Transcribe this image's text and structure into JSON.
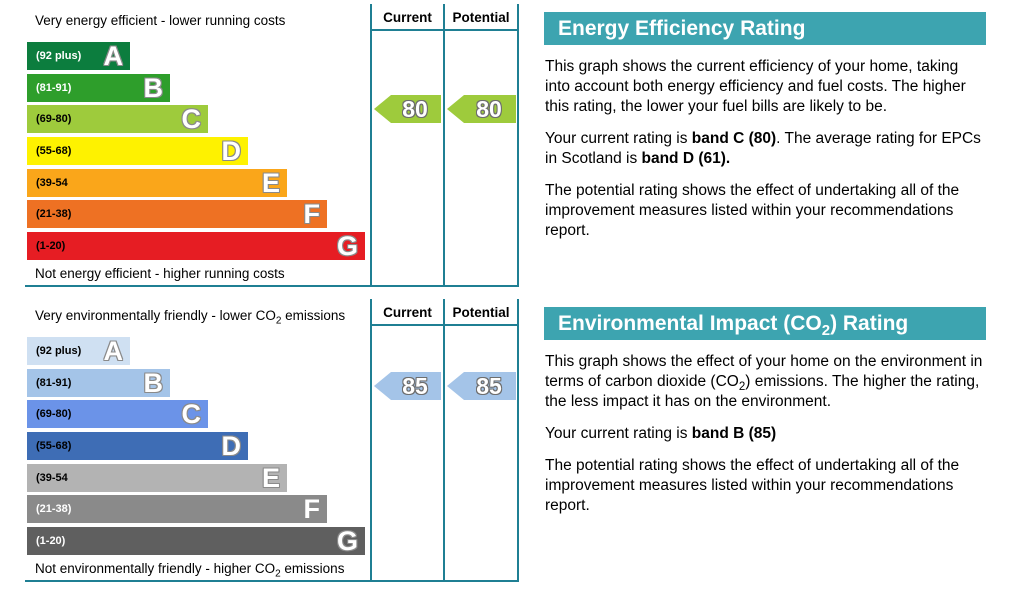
{
  "theme": {
    "header_bg": "#3da4b0",
    "line_color": "#1f7f93",
    "text_color": "#000000",
    "band_letter_color": "#ffffff"
  },
  "chart_data": [
    {
      "type": "bar",
      "variant": "epc-rating-scale",
      "title": "Energy Efficiency Rating",
      "top_caption": {
        "pre": "Very energy efficient - lower running costs"
      },
      "bottom_caption": {
        "pre": "Not energy efficient - higher running costs"
      },
      "column_headers": [
        "Current",
        "Potential"
      ],
      "bands": [
        {
          "letter": "A",
          "range": "(92 plus)",
          "color": "#0c7d3e",
          "label_color": "#ffffff"
        },
        {
          "letter": "B",
          "range": "(81-91)",
          "color": "#2e9e2b",
          "label_color": "#ffffff"
        },
        {
          "letter": "C",
          "range": "(69-80)",
          "color": "#9ecb3c",
          "label_color": "#000000"
        },
        {
          "letter": "D",
          "range": "(55-68)",
          "color": "#fef200",
          "label_color": "#000000"
        },
        {
          "letter": "E",
          "range": "(39-54",
          "color": "#faa61a",
          "label_color": "#000000"
        },
        {
          "letter": "F",
          "range": "(21-38)",
          "color": "#ee7123",
          "label_color": "#000000"
        },
        {
          "letter": "G",
          "range": "(1-20)",
          "color": "#e61d23",
          "label_color": "#000000"
        }
      ],
      "current": {
        "value": 80,
        "band": "C",
        "color": "#9ecb3c"
      },
      "potential": {
        "value": 80,
        "band": "C",
        "color": "#9ecb3c"
      }
    },
    {
      "type": "bar",
      "variant": "epc-rating-scale",
      "title": "Environmental Impact (CO2) Rating",
      "top_caption": {
        "pre": "Very environmentally friendly - lower CO",
        "sub": "2",
        "post": " emissions"
      },
      "bottom_caption": {
        "pre": "Not environmentally friendly - higher CO",
        "sub": "2",
        "post": " emissions"
      },
      "column_headers": [
        "Current",
        "Potential"
      ],
      "bands": [
        {
          "letter": "A",
          "range": "(92 plus)",
          "color": "#cfe0f2",
          "label_color": "#000000"
        },
        {
          "letter": "B",
          "range": "(81-91)",
          "color": "#a4c4e8",
          "label_color": "#000000"
        },
        {
          "letter": "C",
          "range": "(69-80)",
          "color": "#6b93e8",
          "label_color": "#000000"
        },
        {
          "letter": "D",
          "range": "(55-68)",
          "color": "#3e6db5",
          "label_color": "#000000"
        },
        {
          "letter": "E",
          "range": "(39-54",
          "color": "#b3b3b3",
          "label_color": "#000000"
        },
        {
          "letter": "F",
          "range": "(21-38)",
          "color": "#8a8a8a",
          "label_color": "#ffffff"
        },
        {
          "letter": "G",
          "range": "(1-20)",
          "color": "#5f5f5f",
          "label_color": "#ffffff"
        }
      ],
      "current": {
        "value": 85,
        "band": "B",
        "color": "#a4c4e8"
      },
      "potential": {
        "value": 85,
        "band": "B",
        "color": "#a4c4e8"
      }
    }
  ],
  "panels": [
    {
      "title_pre": "Energy Efficiency Rating",
      "paragraphs": {
        "p1_pre": "This graph shows the current efficiency of your home, taking into account both energy efficiency and fuel costs. The higher this rating, the lower your fuel bills are likely to be.",
        "p2_pre": "Your current rating is ",
        "p2_bold1": "band C (80)",
        "p2_mid": ". The average rating for EPCs in Scotland is ",
        "p2_bold2": "band D (61).",
        "p3": "The potential rating shows the effect of undertaking all of the improvement measures listed within your recommendations report."
      }
    },
    {
      "title_pre": "Environmental Impact (CO",
      "title_sub": "2",
      "title_post": ") Rating",
      "paragraphs": {
        "p1_pre": "This graph shows the effect of your home on the environment in terms of carbon dioxide (CO",
        "p1_sub": "2",
        "p1_post": ") emissions. The higher the rating, the less impact it has on the environment.",
        "p2_pre": "Your current rating is ",
        "p2_bold1": "band B (85)",
        "p3": "The potential rating shows the effect of undertaking all of the improvement measures listed within your recommendations report."
      }
    }
  ]
}
